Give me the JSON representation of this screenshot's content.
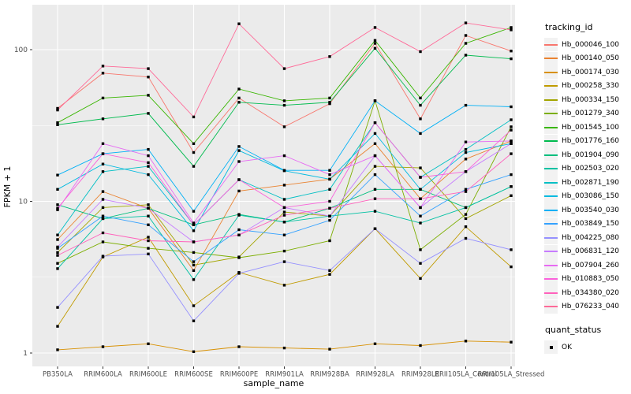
{
  "figure": {
    "y_axis_title": "FPKM + 1",
    "x_axis_title": "sample_name",
    "y_tick_labels": [
      "100",
      "10",
      "1"
    ],
    "panel_color": "#EBEBEB",
    "grid_color": "#FFFFFF",
    "tick_text_color": "#4D4D4D",
    "point_color": "#000000"
  },
  "chart_data": {
    "type": "line",
    "title": "",
    "xlabel": "sample_name",
    "ylabel": "FPKM + 1",
    "y_scale": "log10",
    "ylim": [
      1,
      200
    ],
    "y_ticks": [
      1,
      10,
      100
    ],
    "grid": true,
    "legend_position": "right",
    "legend": {
      "tracking_title": "tracking_id",
      "quant_title": "quant_status",
      "quant_label": "OK"
    },
    "point_style": "black-filled-square",
    "categories": [
      "PB350LA",
      "RRIM600LA",
      "RRIM600LE",
      "RRIM600SE",
      "RRIM600PE",
      "RRIM901LA",
      "RRIM928BA",
      "RRIM928LA",
      "RRIM928LE",
      "RRII105LA_Control",
      "RRII105LA_Stressed"
    ],
    "series": [
      {
        "name": "Hb_000046_100",
        "color": "#F8766D",
        "values": [
          41,
          70,
          66,
          21,
          48,
          31,
          44,
          110,
          35,
          124,
          98
        ]
      },
      {
        "name": "Hb_000140_050",
        "color": "#EA8331",
        "values": [
          5.6,
          11.6,
          9.0,
          3.5,
          11.7,
          12.8,
          14,
          24,
          10.4,
          19,
          25
        ]
      },
      {
        "name": "Hb_000174_030",
        "color": "#D89000",
        "values": [
          1.05,
          1.1,
          1.15,
          1.02,
          1.1,
          1.08,
          1.06,
          1.15,
          1.12,
          1.2,
          1.18
        ]
      },
      {
        "name": "Hb_000258_330",
        "color": "#C09B00",
        "values": [
          1.5,
          4.3,
          5.8,
          2.05,
          3.4,
          2.8,
          3.3,
          6.6,
          3.1,
          6.8,
          3.7
        ]
      },
      {
        "name": "Hb_000334_150",
        "color": "#A3A500",
        "values": [
          4.6,
          9.1,
          9.5,
          3.8,
          4.3,
          8.5,
          8.0,
          17,
          16.6,
          7.7,
          10.9
        ]
      },
      {
        "name": "Hb_001279_340",
        "color": "#7CAE00",
        "values": [
          3.9,
          5.4,
          4.9,
          4.6,
          4.25,
          4.7,
          5.5,
          46,
          4.8,
          8.2,
          31
        ]
      },
      {
        "name": "Hb_001545_100",
        "color": "#39B600",
        "values": [
          33,
          48,
          50,
          24,
          55,
          46,
          48,
          115,
          48,
          110,
          140
        ]
      },
      {
        "name": "Hb_001776_160",
        "color": "#00BB4E",
        "values": [
          32,
          35,
          38,
          17,
          45,
          43,
          45,
          102,
          43,
          92,
          87
        ]
      },
      {
        "name": "Hb_001904_090",
        "color": "#00BF7D",
        "values": [
          9.5,
          7.7,
          9.0,
          7.0,
          8.2,
          7.3,
          9.0,
          12,
          12,
          9.1,
          12.5
        ]
      },
      {
        "name": "Hb_002503_020",
        "color": "#00C1A3",
        "values": [
          3.6,
          7.7,
          8.0,
          3.05,
          8.1,
          7.3,
          8.0,
          8.6,
          7.2,
          9.1,
          12.5
        ]
      },
      {
        "name": "Hb_002871_190",
        "color": "#00BFC4",
        "values": [
          6.0,
          15.7,
          17,
          7.0,
          13.9,
          10.3,
          12,
          33,
          14.4,
          22,
          34.5
        ]
      },
      {
        "name": "Hb_003086_150",
        "color": "#00BAE0",
        "values": [
          12,
          17.6,
          15,
          6.4,
          21.6,
          15.9,
          14,
          28,
          12,
          21,
          24
        ]
      },
      {
        "name": "Hb_003540_030",
        "color": "#00B0F6",
        "values": [
          14.9,
          20.6,
          22,
          8.6,
          23,
          16,
          16,
          46,
          28,
          43,
          42
        ]
      },
      {
        "name": "Hb_003849_150",
        "color": "#35A2FF",
        "values": [
          4.9,
          8.0,
          7.0,
          4.0,
          6.5,
          6.0,
          7.5,
          15,
          8.0,
          12,
          15
        ]
      },
      {
        "name": "Hb_004225_080",
        "color": "#9590FF",
        "values": [
          2.0,
          4.35,
          4.5,
          1.63,
          3.35,
          4.0,
          3.5,
          6.6,
          3.9,
          5.7,
          4.8
        ]
      },
      {
        "name": "Hb_006831_120",
        "color": "#C77CFF",
        "values": [
          5.0,
          10.3,
          9.0,
          5.4,
          6.0,
          9.1,
          8.0,
          20,
          9.1,
          15.7,
          24
        ]
      },
      {
        "name": "Hb_007904_260",
        "color": "#E76BF3",
        "values": [
          8.8,
          24,
          20,
          7.2,
          18.3,
          20,
          15,
          20,
          9.1,
          24.6,
          25
        ]
      },
      {
        "name": "Hb_010883_050",
        "color": "#FA62DB",
        "values": [
          9.0,
          20.6,
          18,
          7.0,
          13.9,
          9.1,
          10,
          33,
          14.4,
          15.7,
          29.5
        ]
      },
      {
        "name": "Hb_034380_020",
        "color": "#FF62BC",
        "values": [
          4.4,
          6.2,
          5.5,
          5.4,
          6.0,
          8.1,
          9.0,
          10.4,
          10.4,
          11.6,
          20.6
        ]
      },
      {
        "name": "Hb_076233_040",
        "color": "#FF6A98",
        "values": [
          40,
          78,
          75,
          36,
          148,
          75,
          90,
          140,
          97,
          150,
          135
        ]
      }
    ]
  }
}
